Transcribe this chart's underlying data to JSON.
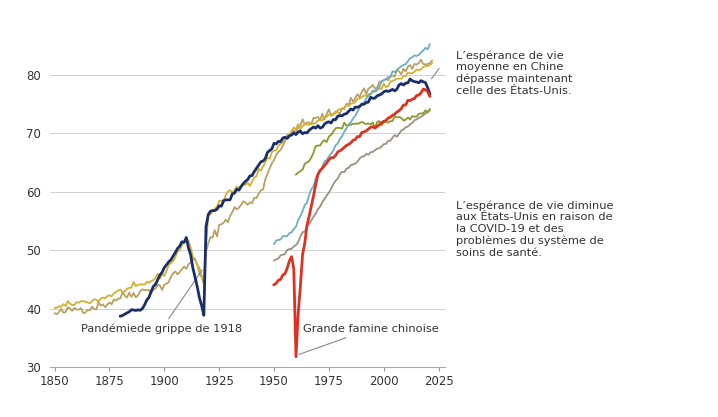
{
  "xlim": [
    1848,
    2028
  ],
  "ylim": [
    30,
    90
  ],
  "yticks": [
    30,
    40,
    50,
    60,
    70,
    80
  ],
  "xticks": [
    1850,
    1875,
    1900,
    1925,
    1950,
    1975,
    2000,
    2025
  ],
  "bg_color": "#ffffff",
  "grid_color": "#d0d0d0",
  "annotation1_text": "L’espérance de vie\nmoyenne en Chine\ndépasse maintenant\ncelle des États-Unis.",
  "annotation2_text": "L’espérance de vie diminue\naux États-Unis en raison de\nla COVID-19 et des\nproblèmes du système de\nsoins de santé.",
  "annotation3_text": "Pandémiede grippe de 1918",
  "annotation4_text": "Grande famine chinoise",
  "colors": {
    "tan": "#b8a060",
    "gold": "#d4b030",
    "usa": "#1a2f6a",
    "gray": "#9e9080",
    "china": "#e03020",
    "lightblue": "#6aaec8",
    "olive": "#8a9a28"
  }
}
